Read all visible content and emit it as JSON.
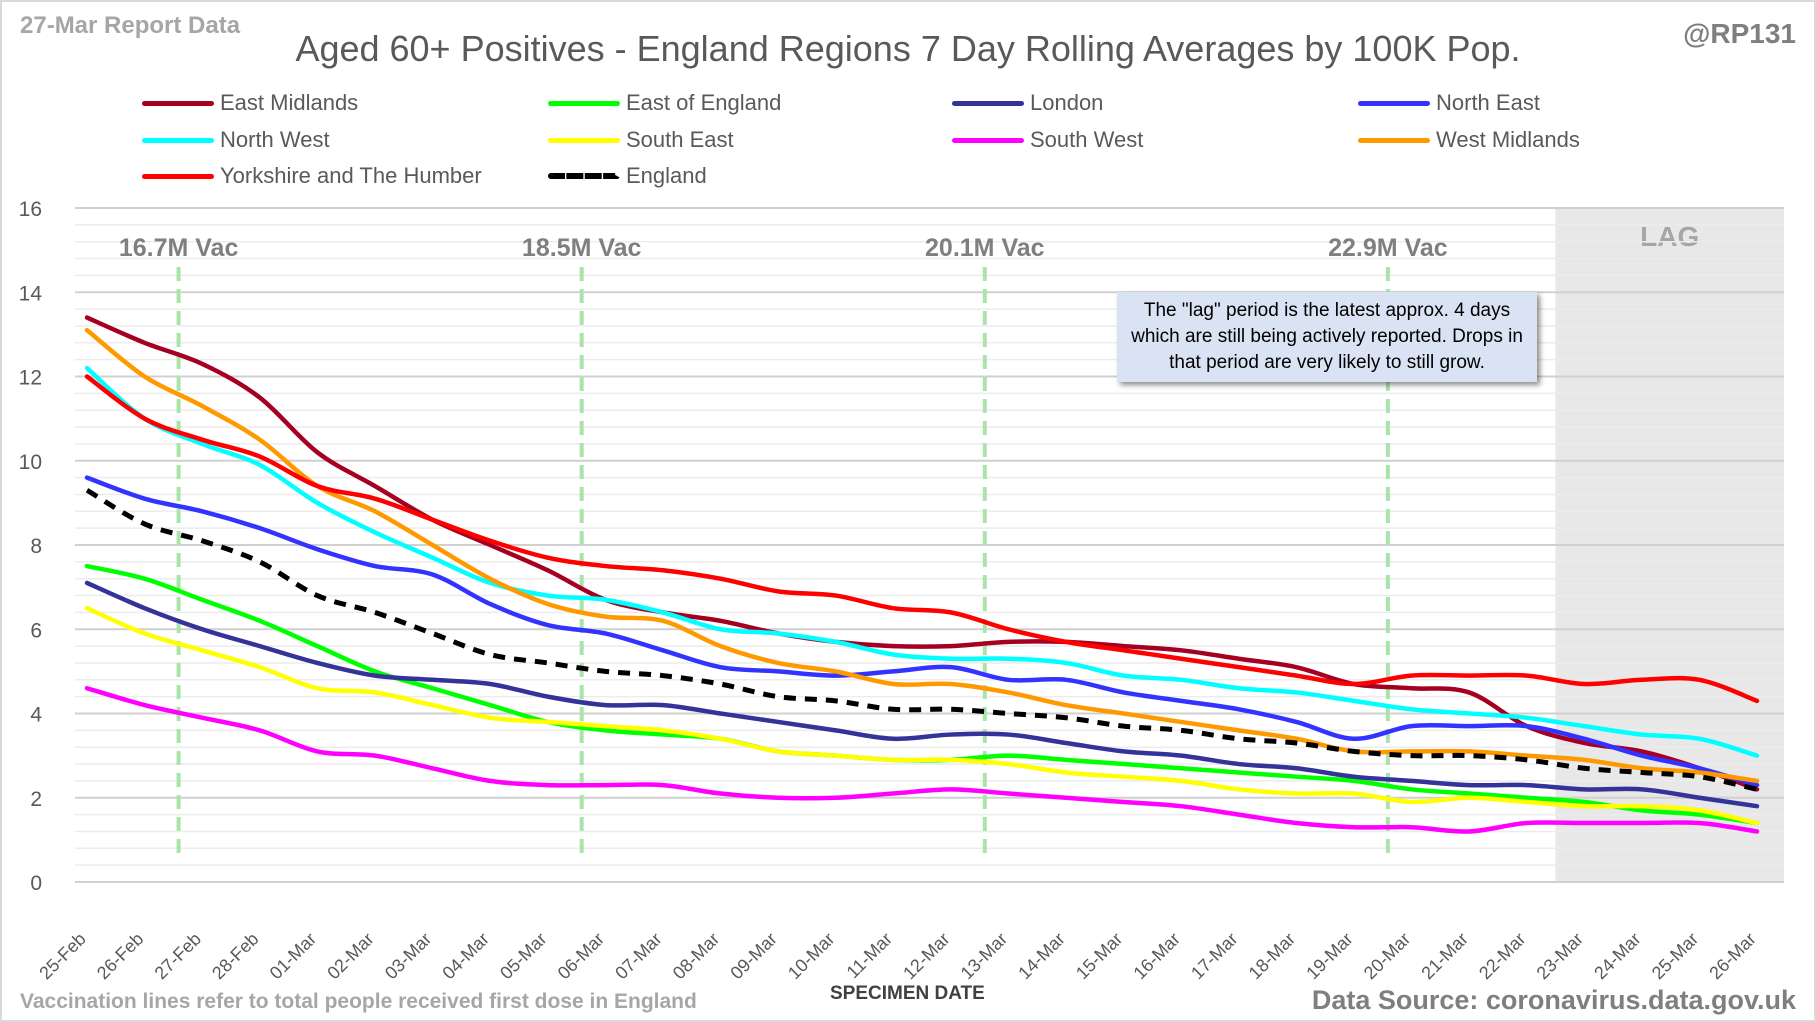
{
  "header": {
    "report_label": "27-Mar Report Data",
    "handle": "@RP131"
  },
  "footer": {
    "note": "Vaccination lines refer to total people received first dose in England",
    "source": "Data Source: coronavirus.data.gov.uk"
  },
  "annotation": {
    "lag_label": "LAG",
    "lag_note": "The \"lag\" period is the latest approx. 4 days which are still being actively reported.  Drops in that period are very likely to still grow."
  },
  "chart_data": {
    "type": "line",
    "title": "Aged 60+ Positives - England Regions 7 Day Rolling Averages by 100K Pop.",
    "xlabel": "SPECIMEN DATE",
    "ylabel": "",
    "ylim": [
      0,
      16
    ],
    "yticks": [
      0,
      2,
      4,
      6,
      8,
      10,
      12,
      14,
      16
    ],
    "grid": true,
    "legend_position": "top",
    "x": [
      "25-Feb",
      "26-Feb",
      "27-Feb",
      "28-Feb",
      "01-Mar",
      "02-Mar",
      "03-Mar",
      "04-Mar",
      "05-Mar",
      "06-Mar",
      "07-Mar",
      "08-Mar",
      "09-Mar",
      "10-Mar",
      "11-Mar",
      "12-Mar",
      "13-Mar",
      "14-Mar",
      "15-Mar",
      "16-Mar",
      "17-Mar",
      "18-Mar",
      "19-Mar",
      "20-Mar",
      "21-Mar",
      "22-Mar",
      "23-Mar",
      "24-Mar",
      "25-Mar",
      "26-Mar"
    ],
    "lag_start": "22-Mar",
    "vaccination_lines": [
      {
        "date": "26-Feb",
        "label": "16.7M Vac"
      },
      {
        "date": "05-Mar",
        "label": "18.5M Vac"
      },
      {
        "date": "12-Mar",
        "label": "20.1M Vac"
      },
      {
        "date": "19-Mar",
        "label": "22.9M Vac"
      }
    ],
    "series": [
      {
        "name": "East Midlands",
        "color": "#a50021",
        "dashed": false,
        "values": [
          13.4,
          12.8,
          12.3,
          11.5,
          10.2,
          9.4,
          8.6,
          8.0,
          7.4,
          6.7,
          6.4,
          6.2,
          5.9,
          5.7,
          5.6,
          5.6,
          5.7,
          5.7,
          5.6,
          5.5,
          5.3,
          5.1,
          4.7,
          4.6,
          4.5,
          3.7,
          3.3,
          3.1,
          2.7,
          2.2
        ]
      },
      {
        "name": "East of England",
        "color": "#00ff00",
        "dashed": false,
        "values": [
          7.5,
          7.2,
          6.7,
          6.2,
          5.6,
          5.0,
          4.6,
          4.2,
          3.8,
          3.6,
          3.5,
          3.4,
          3.1,
          3.0,
          2.9,
          2.9,
          3.0,
          2.9,
          2.8,
          2.7,
          2.6,
          2.5,
          2.4,
          2.2,
          2.1,
          2.0,
          1.9,
          1.7,
          1.6,
          1.4
        ]
      },
      {
        "name": "London",
        "color": "#333399",
        "dashed": false,
        "values": [
          7.1,
          6.5,
          6.0,
          5.6,
          5.2,
          4.9,
          4.8,
          4.7,
          4.4,
          4.2,
          4.2,
          4.0,
          3.8,
          3.6,
          3.4,
          3.5,
          3.5,
          3.3,
          3.1,
          3.0,
          2.8,
          2.7,
          2.5,
          2.4,
          2.3,
          2.3,
          2.2,
          2.2,
          2.0,
          1.8
        ]
      },
      {
        "name": "North East",
        "color": "#3333ff",
        "dashed": false,
        "values": [
          9.6,
          9.1,
          8.8,
          8.4,
          7.9,
          7.5,
          7.3,
          6.6,
          6.1,
          5.9,
          5.5,
          5.1,
          5.0,
          4.9,
          5.0,
          5.1,
          4.8,
          4.8,
          4.5,
          4.3,
          4.1,
          3.8,
          3.4,
          3.7,
          3.7,
          3.7,
          3.4,
          3.0,
          2.7,
          2.3
        ]
      },
      {
        "name": "North West",
        "color": "#00ffff",
        "dashed": false,
        "values": [
          12.2,
          11.0,
          10.4,
          9.9,
          9.0,
          8.3,
          7.7,
          7.1,
          6.8,
          6.7,
          6.4,
          6.0,
          5.9,
          5.7,
          5.4,
          5.3,
          5.3,
          5.2,
          4.9,
          4.8,
          4.6,
          4.5,
          4.3,
          4.1,
          4.0,
          3.9,
          3.7,
          3.5,
          3.4,
          3.0
        ]
      },
      {
        "name": "South East",
        "color": "#ffff00",
        "dashed": false,
        "values": [
          6.5,
          5.9,
          5.5,
          5.1,
          4.6,
          4.5,
          4.2,
          3.9,
          3.8,
          3.7,
          3.6,
          3.4,
          3.1,
          3.0,
          2.9,
          2.9,
          2.8,
          2.6,
          2.5,
          2.4,
          2.2,
          2.1,
          2.1,
          1.9,
          2.0,
          1.9,
          1.8,
          1.8,
          1.7,
          1.4
        ]
      },
      {
        "name": "South West",
        "color": "#ff00ff",
        "dashed": false,
        "values": [
          4.6,
          4.2,
          3.9,
          3.6,
          3.1,
          3.0,
          2.7,
          2.4,
          2.3,
          2.3,
          2.3,
          2.1,
          2.0,
          2.0,
          2.1,
          2.2,
          2.1,
          2.0,
          1.9,
          1.8,
          1.6,
          1.4,
          1.3,
          1.3,
          1.2,
          1.4,
          1.4,
          1.4,
          1.4,
          1.2
        ]
      },
      {
        "name": "West Midlands",
        "color": "#ff9900",
        "dashed": false,
        "values": [
          13.1,
          12.0,
          11.3,
          10.5,
          9.4,
          8.8,
          8.0,
          7.2,
          6.6,
          6.3,
          6.2,
          5.6,
          5.2,
          5.0,
          4.7,
          4.7,
          4.5,
          4.2,
          4.0,
          3.8,
          3.6,
          3.4,
          3.1,
          3.1,
          3.1,
          3.0,
          2.9,
          2.7,
          2.6,
          2.4
        ]
      },
      {
        "name": "Yorkshire and The Humber",
        "color": "#ff0000",
        "dashed": false,
        "values": [
          12.0,
          11.0,
          10.5,
          10.1,
          9.4,
          9.1,
          8.6,
          8.1,
          7.7,
          7.5,
          7.4,
          7.2,
          6.9,
          6.8,
          6.5,
          6.4,
          6.0,
          5.7,
          5.5,
          5.3,
          5.1,
          4.9,
          4.7,
          4.9,
          4.9,
          4.9,
          4.7,
          4.8,
          4.8,
          4.3
        ]
      },
      {
        "name": "England",
        "color": "#000000",
        "dashed": true,
        "values": [
          9.3,
          8.5,
          8.1,
          7.6,
          6.8,
          6.4,
          5.9,
          5.4,
          5.2,
          5.0,
          4.9,
          4.7,
          4.4,
          4.3,
          4.1,
          4.1,
          4.0,
          3.9,
          3.7,
          3.6,
          3.4,
          3.3,
          3.1,
          3.0,
          3.0,
          2.9,
          2.7,
          2.6,
          2.5,
          2.2
        ]
      }
    ]
  }
}
